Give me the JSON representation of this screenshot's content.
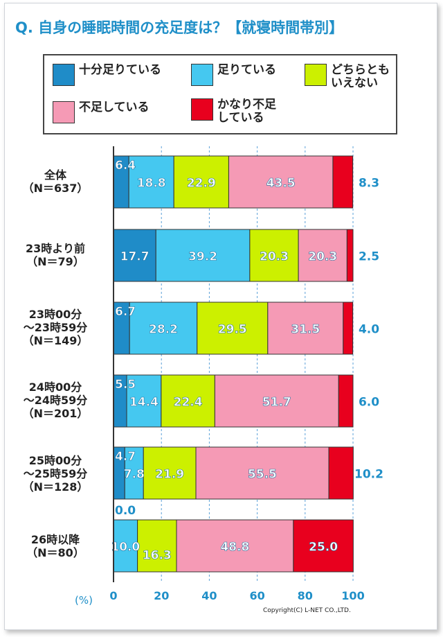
{
  "title": "Q. 自身の睡眠時間の充足度は？【就寝時間帯別】",
  "unit_label": "(%)",
  "copyright": "Copyright(C) L-NET CO.,LTD.",
  "legend": [
    {
      "label": "十分足りている",
      "color": "#1f8cc8"
    },
    {
      "label": "足りている",
      "color": "#45c8f0"
    },
    {
      "label": "どちらとも\nいえない",
      "color": "#ccf000"
    },
    {
      "label": "不足している",
      "color": "#f59ab5"
    },
    {
      "label": "かなり不足\nしている",
      "color": "#e8001e"
    }
  ],
  "chart_data": {
    "type": "bar",
    "orientation": "horizontal",
    "stacked": true,
    "xlim": [
      0,
      100
    ],
    "xticks": [
      0,
      20,
      40,
      60,
      80,
      100
    ],
    "categories": [
      "全体\n（N＝637）",
      "23時より前\n（N＝79）",
      "23時00分\n～23時59分\n（N＝149）",
      "24時00分\n～24時59分\n（N＝201）",
      "25時00分\n～25時59分\n（N＝128）",
      "26時以降\n（N＝80）"
    ],
    "series": [
      {
        "name": "十分足りている",
        "values": [
          6.4,
          17.7,
          6.7,
          5.5,
          4.7,
          0.0
        ]
      },
      {
        "name": "足りている",
        "values": [
          18.8,
          39.2,
          28.2,
          14.4,
          7.8,
          10.0
        ]
      },
      {
        "name": "どちらともいえない",
        "values": [
          22.9,
          20.3,
          29.5,
          22.4,
          21.9,
          16.3
        ]
      },
      {
        "name": "不足している",
        "values": [
          43.5,
          20.3,
          31.5,
          51.7,
          55.5,
          48.8
        ]
      },
      {
        "name": "かなり不足している",
        "values": [
          8.3,
          2.5,
          4.0,
          6.0,
          10.2,
          25.0
        ]
      }
    ],
    "data_labels": [
      [
        "6.4",
        "18.8",
        "22.9",
        "43.5",
        "8.3"
      ],
      [
        "17.7",
        "39.2",
        "20.3",
        "20.3",
        "2.5"
      ],
      [
        "6.7",
        "28.2",
        "29.5",
        "31.5",
        "4.0"
      ],
      [
        "5.5",
        "14.4",
        "22.4",
        "51.7",
        "6.0"
      ],
      [
        "4.7",
        "7.8",
        "21.9",
        "55.5",
        "10.2"
      ],
      [
        "0.0",
        "10.0",
        "16.3",
        "48.8",
        "25.0"
      ]
    ],
    "grid": true
  }
}
